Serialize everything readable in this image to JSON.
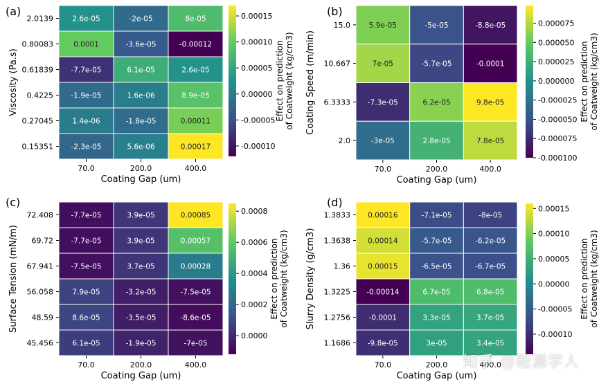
{
  "colors": {
    "viridis": [
      "#440154",
      "#3b528b",
      "#21918c",
      "#5ec962",
      "#fde725"
    ]
  },
  "chart_data": [
    {
      "panel_label": "(a)",
      "type": "heatmap",
      "xlabel": "Coating Gap (um)",
      "ylabel": "Viscosity (Pa.s)",
      "colorbar_label": "Effect on prediction of Coatweight (kg/cm3)",
      "x_categories": [
        "70.0",
        "200.0",
        "400.0"
      ],
      "y_categories": [
        "2.0139",
        "0.80083",
        "0.61839",
        "0.4225",
        "0.27045",
        "0.15351"
      ],
      "value_labels": [
        [
          "2.6e-05",
          "-2e-05",
          "8e-05"
        ],
        [
          "0.0001",
          "-3.6e-05",
          "-0.00012"
        ],
        [
          "-7.7e-05",
          "6.1e-05",
          "2.6e-05"
        ],
        [
          "-1.9e-05",
          "1.6e-06",
          "8.9e-05"
        ],
        [
          "1.4e-06",
          "-1.8e-05",
          "0.00011"
        ],
        [
          "-2.3e-05",
          "5.6e-06",
          "0.00017"
        ]
      ],
      "values": [
        [
          2.6e-05,
          -2e-05,
          8e-05
        ],
        [
          0.0001,
          -3.6e-05,
          -0.00012
        ],
        [
          -7.7e-05,
          6.1e-05,
          2.6e-05
        ],
        [
          -1.9e-05,
          1.6e-06,
          8.9e-05
        ],
        [
          1.4e-06,
          -1.8e-05,
          0.00011
        ],
        [
          -2.3e-05,
          5.6e-06,
          0.00017
        ]
      ],
      "vmin": -0.00012,
      "vmax": 0.00017,
      "colorbar_ticks": [
        0.00015,
        0.0001,
        5e-05,
        0.0,
        -5e-05,
        -0.0001
      ],
      "colorbar_tick_labels": [
        "0.00015",
        "0.00010",
        "0.00005",
        "0.00000",
        "-0.00005",
        "-0.00010"
      ]
    },
    {
      "panel_label": "(b)",
      "type": "heatmap",
      "xlabel": "Coating Gap (um)",
      "ylabel": "Coating Speed (m/min)",
      "colorbar_label": "Effect on prediction of Coatweight (kg/cm3)",
      "x_categories": [
        "70.0",
        "200.0",
        "400.0"
      ],
      "y_categories": [
        "15.0",
        "10.667",
        "6.3333",
        "2.0"
      ],
      "value_labels": [
        [
          "5.9e-05",
          "-5e-05",
          "-8.8e-05"
        ],
        [
          "7e-05",
          "-5.7e-05",
          "-0.0001"
        ],
        [
          "-7.3e-05",
          "6.2e-05",
          "9.8e-05"
        ],
        [
          "-3e-05",
          "2.8e-05",
          "7.8e-05"
        ]
      ],
      "values": [
        [
          5.9e-05,
          -5e-05,
          -8.8e-05
        ],
        [
          7e-05,
          -5.7e-05,
          -0.0001
        ],
        [
          -7.3e-05,
          6.2e-05,
          9.8e-05
        ],
        [
          -3e-05,
          2.8e-05,
          7.8e-05
        ]
      ],
      "vmin": -0.0001,
      "vmax": 9.8e-05,
      "colorbar_ticks": [
        7.5e-05,
        5e-05,
        2.5e-05,
        0.0,
        -2.5e-05,
        -5e-05,
        -7.5e-05,
        -0.0001
      ],
      "colorbar_tick_labels": [
        "0.000075",
        "0.000050",
        "0.000025",
        "0.000000",
        "-0.000025",
        "-0.000050",
        "-0.000075",
        "-0.000100"
      ]
    },
    {
      "panel_label": "(c)",
      "type": "heatmap",
      "xlabel": "Coating Gap (um)",
      "ylabel": "Surface Tension (mN/m)",
      "colorbar_label": "Effect on prediction of Coatweight (kg/cm3)",
      "x_categories": [
        "70.0",
        "200.0",
        "400.0"
      ],
      "y_categories": [
        "72.408",
        "69.72",
        "67.941",
        "56.058",
        "48.59",
        "45.456"
      ],
      "value_labels": [
        [
          "-7.7e-05",
          "3.9e-05",
          "0.00085"
        ],
        [
          "-7.7e-05",
          "3.9e-05",
          "0.00057"
        ],
        [
          "-7.5e-05",
          "3.7e-05",
          "0.00028"
        ],
        [
          "7.9e-05",
          "-3.2e-05",
          "-7.5e-05"
        ],
        [
          "8.6e-05",
          "-3.5e-05",
          "-8.6e-05"
        ],
        [
          "6.1e-05",
          "-1.9e-05",
          "-7e-05"
        ]
      ],
      "values": [
        [
          -7.7e-05,
          3.9e-05,
          0.00085
        ],
        [
          -7.7e-05,
          3.9e-05,
          0.00057
        ],
        [
          -7.5e-05,
          3.7e-05,
          0.00028
        ],
        [
          7.9e-05,
          -3.2e-05,
          -7.5e-05
        ],
        [
          8.6e-05,
          -3.5e-05,
          -8.6e-05
        ],
        [
          6.1e-05,
          -1.9e-05,
          -7e-05
        ]
      ],
      "vmin": -0.00012,
      "vmax": 0.00085,
      "colorbar_ticks": [
        0.0008,
        0.0006,
        0.0004,
        0.0002,
        0.0
      ],
      "colorbar_tick_labels": [
        "0.0008",
        "0.0006",
        "0.0004",
        "0.0002",
        "0.0000"
      ]
    },
    {
      "panel_label": "(d)",
      "type": "heatmap",
      "xlabel": "Coating Gap (um)",
      "ylabel": "Slurry Density (g/cm3)",
      "colorbar_label": "Effect on prediction of Coatweight (kg/cm3)",
      "x_categories": [
        "70.0",
        "200.0",
        "400.0"
      ],
      "y_categories": [
        "1.3833",
        "1.3638",
        "1.36",
        "1.3225",
        "1.2756",
        "1.1686"
      ],
      "value_labels": [
        [
          "0.00016",
          "-7.1e-05",
          "-8e-05"
        ],
        [
          "0.00014",
          "-5.7e-05",
          "-6.2e-05"
        ],
        [
          "0.00015",
          "-6.5e-05",
          "-6.7e-05"
        ],
        [
          "-0.00014",
          "6.7e-05",
          "6.8e-05"
        ],
        [
          "-0.0001",
          "3.3e-05",
          "3.7e-05"
        ],
        [
          "-9.8e-05",
          "3e-05",
          "3.4e-05"
        ]
      ],
      "values": [
        [
          0.00016,
          -7.1e-05,
          -8e-05
        ],
        [
          0.00014,
          -5.7e-05,
          -6.2e-05
        ],
        [
          0.00015,
          -6.5e-05,
          -6.7e-05
        ],
        [
          -0.00014,
          6.7e-05,
          6.8e-05
        ],
        [
          -0.0001,
          3.3e-05,
          3.7e-05
        ],
        [
          -9.8e-05,
          3e-05,
          3.4e-05
        ]
      ],
      "vmin": -0.00014,
      "vmax": 0.00016,
      "colorbar_ticks": [
        0.00015,
        0.0001,
        5e-05,
        0.0,
        -5e-05,
        -0.0001
      ],
      "colorbar_tick_labels": [
        "0.00015",
        "0.00010",
        "0.00005",
        "0.00000",
        "-0.00005",
        "-0.00010"
      ]
    }
  ],
  "watermark": "知乎 @能源学人"
}
